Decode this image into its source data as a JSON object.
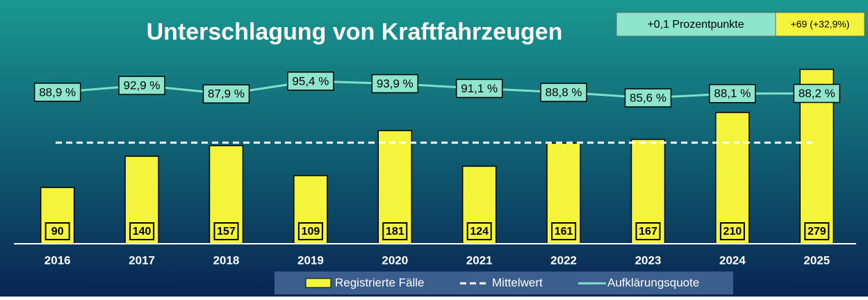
{
  "chart_data": {
    "type": "bar",
    "title": "Unterschlagung von Kraftfahrzeugen",
    "categories": [
      "2016",
      "2017",
      "2018",
      "2019",
      "2020",
      "2021",
      "2022",
      "2023",
      "2024",
      "2025"
    ],
    "series": [
      {
        "name": "Registrierte Fälle",
        "color": "#f4f43c",
        "values": [
          90,
          140,
          157,
          109,
          181,
          124,
          161,
          167,
          210,
          279
        ]
      },
      {
        "name": "Aufklärungsquote",
        "color": "#7fe0c8",
        "axis": "y2",
        "values": [
          88.9,
          92.9,
          87.9,
          95.4,
          93.9,
          91.1,
          88.8,
          85.6,
          88.1,
          88.2
        ],
        "value_labels": [
          "88,9 %",
          "92,9 %",
          "87,9 %",
          "95,4 %",
          "93,9 %",
          "91,1 %",
          "88,8 %",
          "85,6 %",
          "88,1 %",
          "88,2 %"
        ]
      }
    ],
    "mean_line": {
      "name": "Mittelwert",
      "value": 161.8,
      "color": "#ffffff"
    },
    "annotations": [
      "+0,1 Prozentpunkte",
      "+69 (+32,9%)"
    ],
    "ylim": [
      0,
      300
    ],
    "y2lim": [
      0,
      110
    ]
  }
}
